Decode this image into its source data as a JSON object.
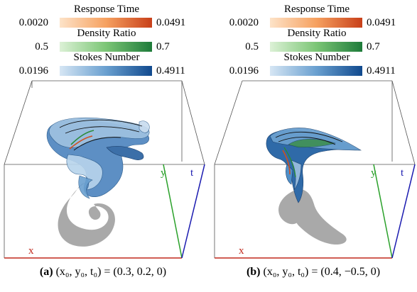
{
  "panels": [
    {
      "id": "a",
      "legend": {
        "response_time": {
          "title": "Response Time",
          "min": "0.0020",
          "max": "0.0491",
          "color_low": "#fde3c8",
          "color_high": "#c8401a"
        },
        "density_ratio": {
          "title": "Density Ratio",
          "min": "0.5",
          "max": "0.7",
          "color_low": "#dcf1d6",
          "color_high": "#1e7b3a"
        },
        "stokes_number": {
          "title": "Stokes Number",
          "min": "0.0196",
          "max": "0.4911",
          "color_low": "#d6e6f4",
          "color_high": "#114a8e"
        }
      },
      "axes": {
        "x": "x",
        "y": "y",
        "t": "t"
      },
      "caption": {
        "label": "(a)",
        "formula": "(x₀, y₀, t₀) = (0.3, 0.2, 0)"
      }
    },
    {
      "id": "b",
      "legend": {
        "response_time": {
          "title": "Response Time",
          "min": "0.0020",
          "max": "0.0491",
          "color_low": "#fde3c8",
          "color_high": "#c8401a"
        },
        "density_ratio": {
          "title": "Density Ratio",
          "min": "0.5",
          "max": "0.7",
          "color_low": "#dcf1d6",
          "color_high": "#1e7b3a"
        },
        "stokes_number": {
          "title": "Stokes Number",
          "min": "0.0196",
          "max": "0.4911",
          "color_low": "#d6e6f4",
          "color_high": "#114a8e"
        }
      },
      "axes": {
        "x": "x",
        "y": "y",
        "t": "t"
      },
      "caption": {
        "label": "(b)",
        "formula": "(x₀, y₀, t₀) = (0.4, −0.5, 0)"
      }
    }
  ],
  "colors": {
    "axis_x": "#c0281c",
    "axis_y": "#2aa12a",
    "axis_t": "#1a1ab0",
    "shadow": "#a9a9a9",
    "box": "#555555"
  }
}
